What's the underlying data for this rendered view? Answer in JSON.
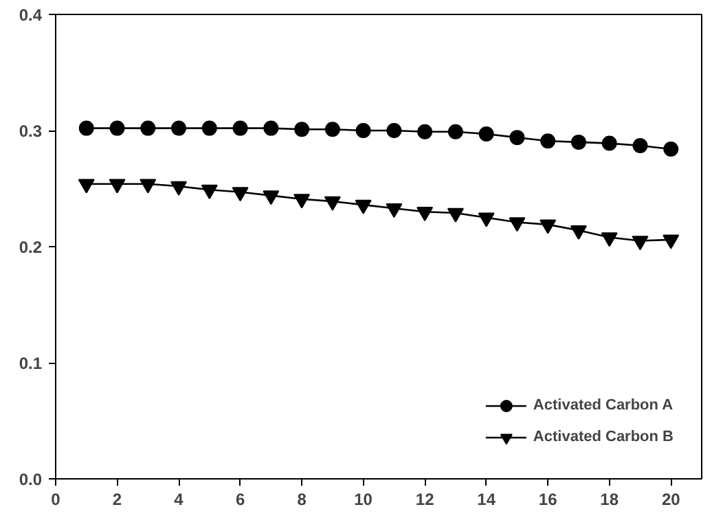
{
  "chart_data": {
    "type": "line",
    "x": [
      1,
      2,
      3,
      4,
      5,
      6,
      7,
      8,
      9,
      10,
      11,
      12,
      13,
      14,
      15,
      16,
      17,
      18,
      19,
      20
    ],
    "series": [
      {
        "name": "Activated Carbon A",
        "color": "#000000",
        "marker": "circle",
        "values": [
          0.302,
          0.302,
          0.302,
          0.302,
          0.302,
          0.302,
          0.302,
          0.301,
          0.301,
          0.3,
          0.3,
          0.299,
          0.299,
          0.297,
          0.294,
          0.291,
          0.29,
          0.289,
          0.287,
          0.284
        ]
      },
      {
        "name": "Activated Carbon B",
        "color": "#000000",
        "marker": "triangle",
        "values": [
          0.254,
          0.254,
          0.254,
          0.252,
          0.249,
          0.247,
          0.244,
          0.241,
          0.239,
          0.236,
          0.233,
          0.23,
          0.229,
          0.225,
          0.221,
          0.219,
          0.214,
          0.208,
          0.205,
          0.206
        ]
      }
    ],
    "xlim": [
      0,
      21
    ],
    "xticks": [
      0,
      2,
      4,
      6,
      8,
      10,
      12,
      14,
      16,
      18,
      20
    ],
    "ylim": [
      0,
      0.4
    ],
    "yticks": [
      {
        "value": 0,
        "label": "0.0"
      },
      {
        "value": 0.1,
        "label": "0.1"
      },
      {
        "value": 0.2,
        "label": "0.2"
      },
      {
        "value": 0.3,
        "label": "0.3"
      },
      {
        "value": 0.4,
        "label": "0.4"
      }
    ],
    "grid": false,
    "legend": "bottom right",
    "line_style": "solid"
  }
}
